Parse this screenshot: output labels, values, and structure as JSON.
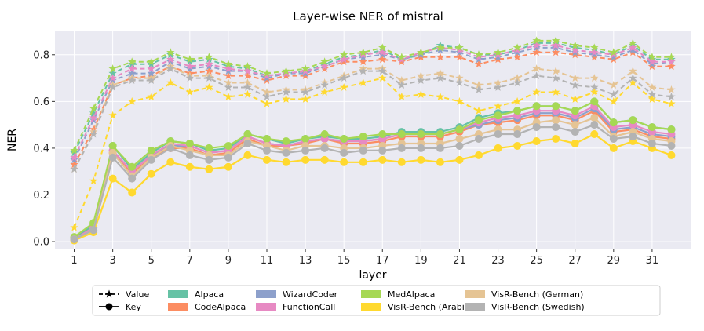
{
  "chart_data": {
    "type": "line",
    "title": "Layer-wise NER of mistral",
    "xlabel": "layer",
    "ylabel": "NER",
    "xlim": [
      0,
      33
    ],
    "ylim": [
      -0.03,
      0.9
    ],
    "xticks": [
      1,
      3,
      5,
      7,
      9,
      11,
      13,
      15,
      17,
      19,
      21,
      23,
      25,
      27,
      29,
      31
    ],
    "yticks": [
      0.0,
      0.2,
      0.4,
      0.6,
      0.8
    ],
    "ytick_labels": [
      "0.0",
      "0.2",
      "0.4",
      "0.6",
      "0.8"
    ],
    "grid": true,
    "legend_placement": "bottom",
    "style_legend": [
      {
        "label": "Value",
        "marker": "star",
        "linestyle": "dashed"
      },
      {
        "label": "Key",
        "marker": "circle",
        "linestyle": "solid"
      }
    ],
    "layers": [
      1,
      2,
      3,
      4,
      5,
      6,
      7,
      8,
      9,
      10,
      11,
      12,
      13,
      14,
      15,
      16,
      17,
      18,
      19,
      20,
      21,
      22,
      23,
      24,
      25,
      26,
      27,
      28,
      29,
      30,
      31,
      32
    ],
    "series": [
      {
        "name": "Alpaca",
        "color": "#66c2a5",
        "value": [
          0.38,
          0.55,
          0.72,
          0.76,
          0.76,
          0.8,
          0.77,
          0.78,
          0.75,
          0.74,
          0.71,
          0.72,
          0.73,
          0.76,
          0.79,
          0.8,
          0.82,
          0.78,
          0.8,
          0.84,
          0.83,
          0.8,
          0.8,
          0.82,
          0.85,
          0.85,
          0.83,
          0.82,
          0.8,
          0.84,
          0.78,
          0.78
        ],
        "key": [
          0.015,
          0.07,
          0.41,
          0.31,
          0.38,
          0.43,
          0.42,
          0.39,
          0.4,
          0.46,
          0.44,
          0.42,
          0.44,
          0.45,
          0.44,
          0.44,
          0.45,
          0.47,
          0.47,
          0.47,
          0.49,
          0.53,
          0.55,
          0.56,
          0.58,
          0.58,
          0.56,
          0.6,
          0.51,
          0.52,
          0.49,
          0.48
        ]
      },
      {
        "name": "CodeAlpaca",
        "color": "#fc8d62",
        "value": [
          0.33,
          0.48,
          0.67,
          0.7,
          0.71,
          0.75,
          0.72,
          0.73,
          0.71,
          0.71,
          0.69,
          0.71,
          0.71,
          0.74,
          0.77,
          0.77,
          0.78,
          0.77,
          0.79,
          0.79,
          0.79,
          0.76,
          0.78,
          0.79,
          0.81,
          0.81,
          0.8,
          0.79,
          0.78,
          0.81,
          0.75,
          0.75
        ],
        "key": [
          0.01,
          0.06,
          0.38,
          0.29,
          0.36,
          0.4,
          0.4,
          0.37,
          0.38,
          0.44,
          0.41,
          0.41,
          0.42,
          0.44,
          0.42,
          0.42,
          0.43,
          0.45,
          0.45,
          0.45,
          0.47,
          0.5,
          0.51,
          0.52,
          0.54,
          0.54,
          0.52,
          0.56,
          0.47,
          0.48,
          0.45,
          0.44
        ]
      },
      {
        "name": "WizardCoder",
        "color": "#8da0cb",
        "value": [
          0.35,
          0.52,
          0.69,
          0.72,
          0.72,
          0.77,
          0.74,
          0.75,
          0.73,
          0.73,
          0.7,
          0.72,
          0.72,
          0.75,
          0.78,
          0.79,
          0.8,
          0.78,
          0.8,
          0.82,
          0.81,
          0.78,
          0.79,
          0.81,
          0.83,
          0.83,
          0.81,
          0.8,
          0.79,
          0.82,
          0.76,
          0.77
        ],
        "key": [
          0.01,
          0.06,
          0.39,
          0.3,
          0.37,
          0.41,
          0.41,
          0.38,
          0.39,
          0.45,
          0.42,
          0.41,
          0.43,
          0.44,
          0.43,
          0.43,
          0.44,
          0.46,
          0.46,
          0.46,
          0.48,
          0.5,
          0.52,
          0.53,
          0.55,
          0.55,
          0.53,
          0.57,
          0.48,
          0.49,
          0.46,
          0.45
        ]
      },
      {
        "name": "FunctionCall",
        "color": "#e78ac3",
        "value": [
          0.36,
          0.53,
          0.7,
          0.74,
          0.74,
          0.78,
          0.75,
          0.76,
          0.74,
          0.73,
          0.71,
          0.72,
          0.73,
          0.75,
          0.78,
          0.8,
          0.81,
          0.78,
          0.81,
          0.83,
          0.82,
          0.79,
          0.8,
          0.82,
          0.84,
          0.84,
          0.82,
          0.81,
          0.8,
          0.83,
          0.77,
          0.77
        ],
        "key": [
          0.01,
          0.06,
          0.39,
          0.3,
          0.37,
          0.42,
          0.41,
          0.38,
          0.39,
          0.45,
          0.42,
          0.41,
          0.43,
          0.44,
          0.43,
          0.43,
          0.44,
          0.46,
          0.46,
          0.46,
          0.48,
          0.51,
          0.53,
          0.54,
          0.56,
          0.56,
          0.54,
          0.58,
          0.49,
          0.5,
          0.47,
          0.46
        ]
      },
      {
        "name": "MedAlpaca",
        "color": "#a6d854",
        "value": [
          0.39,
          0.57,
          0.74,
          0.77,
          0.77,
          0.81,
          0.78,
          0.79,
          0.76,
          0.75,
          0.72,
          0.73,
          0.74,
          0.77,
          0.8,
          0.81,
          0.83,
          0.79,
          0.81,
          0.83,
          0.83,
          0.8,
          0.81,
          0.83,
          0.86,
          0.86,
          0.84,
          0.83,
          0.81,
          0.85,
          0.79,
          0.79
        ],
        "key": [
          0.02,
          0.08,
          0.41,
          0.32,
          0.39,
          0.43,
          0.42,
          0.4,
          0.41,
          0.46,
          0.44,
          0.43,
          0.44,
          0.46,
          0.44,
          0.45,
          0.46,
          0.46,
          0.46,
          0.46,
          0.48,
          0.52,
          0.54,
          0.56,
          0.58,
          0.58,
          0.56,
          0.6,
          0.51,
          0.52,
          0.49,
          0.48
        ]
      },
      {
        "name": "VisR-Bench (Arabic)",
        "color": "#ffd92f",
        "value": [
          0.06,
          0.26,
          0.54,
          0.6,
          0.62,
          0.68,
          0.64,
          0.66,
          0.62,
          0.63,
          0.59,
          0.61,
          0.61,
          0.64,
          0.66,
          0.68,
          0.7,
          0.62,
          0.63,
          0.62,
          0.6,
          0.56,
          0.58,
          0.6,
          0.64,
          0.64,
          0.61,
          0.64,
          0.6,
          0.68,
          0.61,
          0.59
        ],
        "key": [
          0.005,
          0.04,
          0.27,
          0.21,
          0.29,
          0.34,
          0.32,
          0.31,
          0.32,
          0.37,
          0.35,
          0.34,
          0.35,
          0.35,
          0.34,
          0.34,
          0.35,
          0.34,
          0.35,
          0.34,
          0.35,
          0.37,
          0.4,
          0.41,
          0.43,
          0.44,
          0.42,
          0.46,
          0.4,
          0.43,
          0.4,
          0.37
        ]
      },
      {
        "name": "VisR-Bench (German)",
        "color": "#e5c494",
        "value": [
          0.31,
          0.47,
          0.67,
          0.7,
          0.7,
          0.75,
          0.71,
          0.71,
          0.68,
          0.68,
          0.64,
          0.65,
          0.65,
          0.68,
          0.71,
          0.74,
          0.74,
          0.69,
          0.71,
          0.72,
          0.7,
          0.67,
          0.68,
          0.7,
          0.74,
          0.73,
          0.7,
          0.7,
          0.67,
          0.73,
          0.66,
          0.65
        ],
        "key": [
          0.01,
          0.05,
          0.38,
          0.28,
          0.36,
          0.41,
          0.39,
          0.37,
          0.37,
          0.43,
          0.41,
          0.39,
          0.41,
          0.41,
          0.4,
          0.4,
          0.41,
          0.42,
          0.42,
          0.42,
          0.44,
          0.46,
          0.48,
          0.48,
          0.51,
          0.52,
          0.5,
          0.53,
          0.45,
          0.47,
          0.44,
          0.43
        ]
      },
      {
        "name": "VisR-Bench (Swedish)",
        "color": "#b3b3b3",
        "value": [
          0.31,
          0.46,
          0.66,
          0.69,
          0.69,
          0.74,
          0.7,
          0.7,
          0.66,
          0.66,
          0.62,
          0.64,
          0.64,
          0.67,
          0.7,
          0.73,
          0.73,
          0.67,
          0.69,
          0.7,
          0.68,
          0.65,
          0.66,
          0.68,
          0.71,
          0.7,
          0.67,
          0.66,
          0.63,
          0.7,
          0.63,
          0.62
        ],
        "key": [
          0.01,
          0.05,
          0.36,
          0.27,
          0.35,
          0.4,
          0.37,
          0.35,
          0.36,
          0.42,
          0.39,
          0.38,
          0.39,
          0.4,
          0.38,
          0.39,
          0.39,
          0.4,
          0.4,
          0.4,
          0.41,
          0.44,
          0.46,
          0.46,
          0.49,
          0.49,
          0.47,
          0.5,
          0.44,
          0.45,
          0.42,
          0.41
        ]
      }
    ]
  }
}
